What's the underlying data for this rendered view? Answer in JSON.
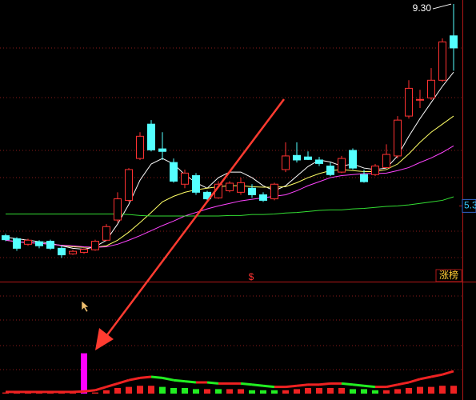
{
  "chart_data": {
    "type": "candlestick",
    "open": [
      4.71,
      4.65,
      4.54,
      4.59,
      4.6,
      4.46,
      4.35,
      4.38,
      4.43,
      4.62,
      5.02,
      5.41,
      6.24,
      6.92,
      6.43,
      6.16,
      5.73,
      5.9,
      5.57,
      5.46,
      5.6,
      5.57,
      5.65,
      5.52,
      5.44,
      6.02,
      6.3,
      6.27,
      6.21,
      6.09,
      5.97,
      6.4,
      5.92,
      5.92,
      6.06,
      6.29,
      7.08,
      7.4,
      7.44,
      7.79,
      8.67
    ],
    "high": [
      4.75,
      4.68,
      4.65,
      4.62,
      4.63,
      4.51,
      4.43,
      4.46,
      4.63,
      4.94,
      5.57,
      6.05,
      6.76,
      7.0,
      6.76,
      6.24,
      6.02,
      5.95,
      5.6,
      5.79,
      5.79,
      5.86,
      5.73,
      5.57,
      5.76,
      6.56,
      6.56,
      6.38,
      6.27,
      6.16,
      6.29,
      6.44,
      6.02,
      6.13,
      6.52,
      7.08,
      7.79,
      7.6,
      8.03,
      8.62,
      9.3
    ],
    "low": [
      4.6,
      4.41,
      4.51,
      4.46,
      4.43,
      4.27,
      4.33,
      4.35,
      4.41,
      4.6,
      4.97,
      5.38,
      6.21,
      6.38,
      6.21,
      5.76,
      5.65,
      5.52,
      5.41,
      5.44,
      5.57,
      5.52,
      5.46,
      5.38,
      5.41,
      5.97,
      6.16,
      6.21,
      6.09,
      5.89,
      5.95,
      6.02,
      5.76,
      5.89,
      6.05,
      6.24,
      7.03,
      7.24,
      7.4,
      7.76,
      7.98
    ],
    "close": [
      4.63,
      4.46,
      4.62,
      4.51,
      4.46,
      4.33,
      4.4,
      4.44,
      4.6,
      4.89,
      5.44,
      6.02,
      6.68,
      6.41,
      6.38,
      5.79,
      5.95,
      5.57,
      5.44,
      5.73,
      5.75,
      5.76,
      5.52,
      5.41,
      5.73,
      6.29,
      6.21,
      6.22,
      6.14,
      5.92,
      6.24,
      6.05,
      5.78,
      6.09,
      6.32,
      7.0,
      7.63,
      7.41,
      7.79,
      8.55,
      8.43
    ],
    "up_color": "#ff3232",
    "down_color": "#54ffff",
    "ylim": [
      3.8,
      9.38
    ],
    "yticks": [
      5.3
    ],
    "high_marker": "9.30",
    "ma_lines": [
      {
        "color": "#ffffff",
        "values": [
          4.68,
          4.65,
          4.62,
          4.59,
          4.56,
          4.51,
          4.46,
          4.44,
          4.49,
          4.62,
          4.94,
          5.33,
          5.81,
          6.13,
          6.24,
          6.13,
          5.92,
          5.76,
          5.65,
          5.86,
          5.97,
          5.97,
          5.86,
          5.7,
          5.6,
          5.7,
          5.89,
          6.08,
          6.21,
          6.17,
          6.09,
          6.13,
          6.05,
          6.02,
          6.05,
          6.29,
          6.68,
          7.03,
          7.35,
          7.67,
          7.95
        ]
      },
      {
        "color": "#ffff66",
        "values": [
          4.62,
          4.59,
          4.57,
          4.56,
          4.54,
          4.52,
          4.49,
          4.48,
          4.48,
          4.51,
          4.62,
          4.78,
          4.97,
          5.17,
          5.38,
          5.49,
          5.57,
          5.62,
          5.65,
          5.68,
          5.7,
          5.7,
          5.68,
          5.67,
          5.67,
          5.68,
          5.76,
          5.86,
          5.94,
          6.0,
          6.02,
          6.0,
          5.98,
          5.98,
          6.02,
          6.13,
          6.33,
          6.56,
          6.76,
          6.92,
          7.08
        ]
      },
      {
        "color": "#ff44ff",
        "values": [
          4.62,
          4.59,
          4.57,
          4.56,
          4.54,
          4.52,
          4.51,
          4.49,
          4.48,
          4.49,
          4.54,
          4.62,
          4.71,
          4.81,
          4.91,
          5.0,
          5.1,
          5.17,
          5.24,
          5.3,
          5.35,
          5.4,
          5.43,
          5.46,
          5.49,
          5.52,
          5.6,
          5.7,
          5.78,
          5.86,
          5.9,
          5.92,
          5.94,
          5.94,
          5.95,
          6.0,
          6.06,
          6.16,
          6.25,
          6.36,
          6.49
        ]
      },
      {
        "color": "#33dd33",
        "values": [
          5.14,
          5.14,
          5.14,
          5.14,
          5.14,
          5.14,
          5.14,
          5.14,
          5.14,
          5.14,
          5.14,
          5.13,
          5.11,
          5.1,
          5.1,
          5.1,
          5.1,
          5.1,
          5.1,
          5.1,
          5.11,
          5.11,
          5.13,
          5.13,
          5.14,
          5.16,
          5.17,
          5.19,
          5.21,
          5.22,
          5.22,
          5.24,
          5.25,
          5.27,
          5.29,
          5.3,
          5.32,
          5.35,
          5.38,
          5.41,
          5.48
        ]
      }
    ],
    "panel_label": "涨榜",
    "signal_symbol": "$",
    "indicator": {
      "ylim": [
        0,
        10
      ],
      "line": [
        0.15,
        0.15,
        0.15,
        0.15,
        0.15,
        0.15,
        0.15,
        0.2,
        0.3,
        0.6,
        0.9,
        1.2,
        1.4,
        1.5,
        1.4,
        1.2,
        1.1,
        1.0,
        1.0,
        0.9,
        0.9,
        0.9,
        0.8,
        0.7,
        0.6,
        0.6,
        0.7,
        0.8,
        0.8,
        0.9,
        0.9,
        0.8,
        0.7,
        0.6,
        0.6,
        0.8,
        1.0,
        1.3,
        1.5,
        1.7,
        2.0
      ],
      "bars": [
        0.1,
        0.1,
        0.1,
        0.1,
        0.1,
        0.1,
        0.1,
        0.1,
        0.1,
        0.3,
        0.5,
        0.6,
        0.7,
        0.7,
        0.6,
        0.5,
        0.5,
        0.4,
        0.4,
        0.4,
        0.4,
        0.4,
        0.3,
        0.3,
        0.3,
        0.3,
        0.4,
        0.5,
        0.5,
        0.5,
        0.5,
        0.4,
        0.4,
        0.3,
        0.3,
        0.4,
        0.5,
        0.6,
        0.6,
        0.7,
        0.7
      ],
      "signal": [
        null,
        null,
        null,
        null,
        null,
        null,
        null,
        3.6,
        null,
        null,
        null,
        null,
        null,
        null,
        null,
        null,
        null,
        null,
        null,
        null,
        null,
        null,
        null,
        null,
        null,
        null,
        null,
        null,
        null,
        null,
        null,
        null,
        null,
        null,
        null,
        null,
        null,
        null,
        null,
        null,
        null
      ],
      "rise_color": "#ee2222",
      "fall_color": "#22ee22",
      "signal_color": "#ff00ff"
    }
  }
}
